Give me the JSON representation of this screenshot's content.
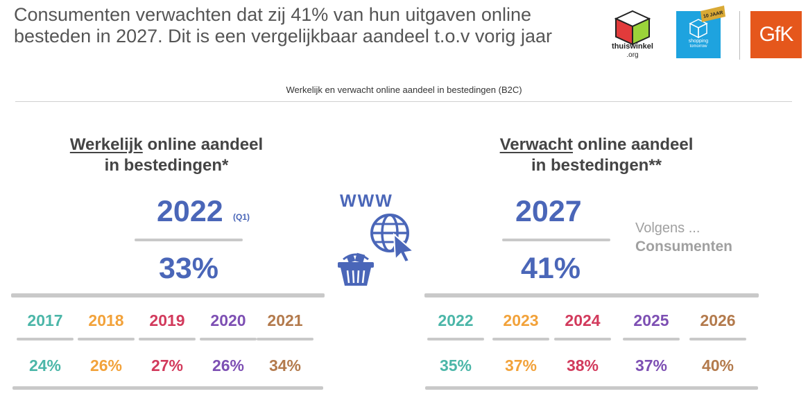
{
  "header": {
    "headline_line1": "Consumenten verwachten dat zij 41% van hun uitgaven online",
    "headline_line2": "besteden in 2027. Dit is een vergelijkbaar aandeel t.o.v vorig jaar",
    "subtitle": "Werkelijk en verwacht online aandeel in bestedingen (B2C)"
  },
  "logos": {
    "thuiswinkel_name": "thuiswinkel",
    "thuiswinkel_suffix": ".org",
    "shopping_line1": "shopping",
    "shopping_line2": "tomorrow",
    "ribbon_text": "10 JAAR",
    "gfk_text": "GfK",
    "gfk_color": "#e5571c",
    "shopping_color": "#1ea3df"
  },
  "left": {
    "title_underlined": "Werkelijk",
    "title_rest": " online aandeel",
    "title_line2": "in bestedingen*",
    "big_year": "2022",
    "big_year_note": "(Q1)",
    "big_pct": "33%"
  },
  "right": {
    "title_underlined": "Verwacht",
    "title_rest": " online aandeel",
    "title_line2": "in bestedingen**",
    "big_year": "2027",
    "big_pct": "41%",
    "note_line1": "Volgens ...",
    "note_line2": "Consumenten"
  },
  "icons": {
    "www_text": "WWW",
    "globe": "globe-cursor-icon",
    "basket": "shopping-basket-icon",
    "accent": "#4a66b8"
  },
  "chart_data": [
    {
      "type": "table",
      "title": "",
      "categories": [
        "2017",
        "2018",
        "2019",
        "2020",
        "2021"
      ],
      "values": [
        24,
        26,
        27,
        26,
        34
      ],
      "labels": [
        "24%",
        "26%",
        "27%",
        "26%",
        "34%"
      ],
      "colors": [
        "#4bb6a8",
        "#f2a23a",
        "#d23a5c",
        "#7d4fb3",
        "#b37a4c"
      ]
    },
    {
      "type": "table",
      "title": "",
      "categories": [
        "2022",
        "2023",
        "2024",
        "2025",
        "2026"
      ],
      "values": [
        35,
        37,
        38,
        37,
        40
      ],
      "labels": [
        "35%",
        "37%",
        "38%",
        "37%",
        "40%"
      ],
      "colors": [
        "#4bb6a8",
        "#f2a23a",
        "#d23a5c",
        "#7d4fb3",
        "#b37a4c"
      ]
    }
  ]
}
